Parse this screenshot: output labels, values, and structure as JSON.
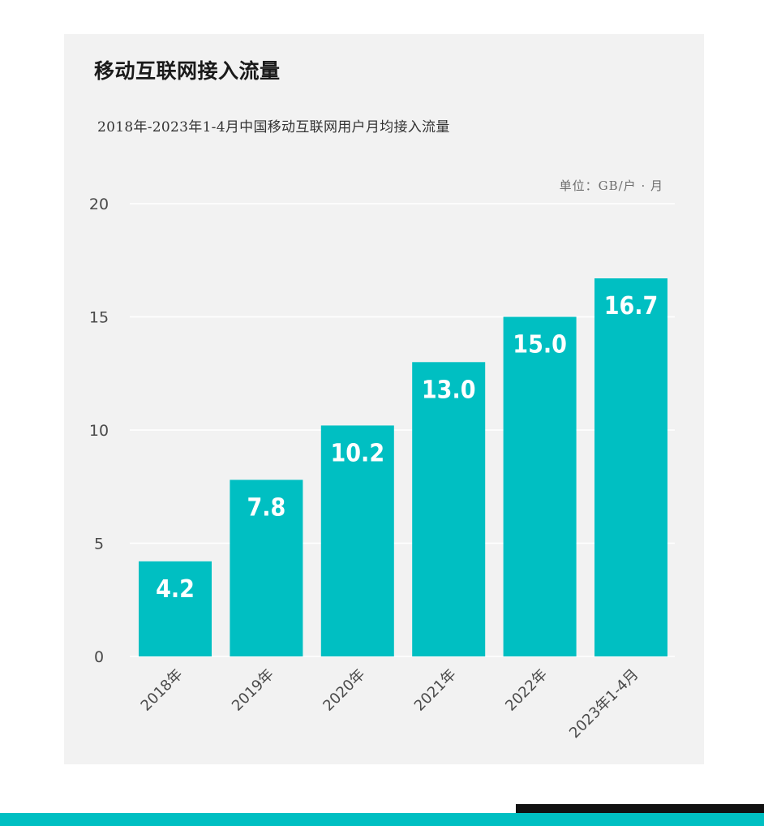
{
  "colors": {
    "bar": "#00bfc2",
    "card_bg": "#f2f2f2",
    "grid": "#ffffff",
    "axis_text": "#4a4a4a",
    "bar_label": "#ffffff",
    "footer_teal": "#00bfc2",
    "footer_black": "#111111"
  },
  "header": {
    "title": "移动互联网接入流量",
    "subtitle": "2018年-2023年1-4月中国移动互联网用户月均接入流量",
    "unit": "单位：GB/户 · 月"
  },
  "chart_data": {
    "type": "bar",
    "categories": [
      "2018年",
      "2019年",
      "2020年",
      "2021年",
      "2022年",
      "2023年1-4月"
    ],
    "values": [
      4.2,
      7.8,
      10.2,
      13.0,
      15.0,
      16.7
    ],
    "value_labels": [
      "4.2",
      "7.8",
      "10.2",
      "13.0",
      "15.0",
      "16.7"
    ],
    "title": "移动互联网接入流量",
    "subtitle": "2018年-2023年1-4月中国移动互联网用户月均接入流量",
    "ylabel": "单位：GB/户 · 月",
    "ylim": [
      0,
      20
    ],
    "yticks": [
      0,
      5,
      10,
      15,
      20
    ],
    "grid": true,
    "legend": "none"
  }
}
